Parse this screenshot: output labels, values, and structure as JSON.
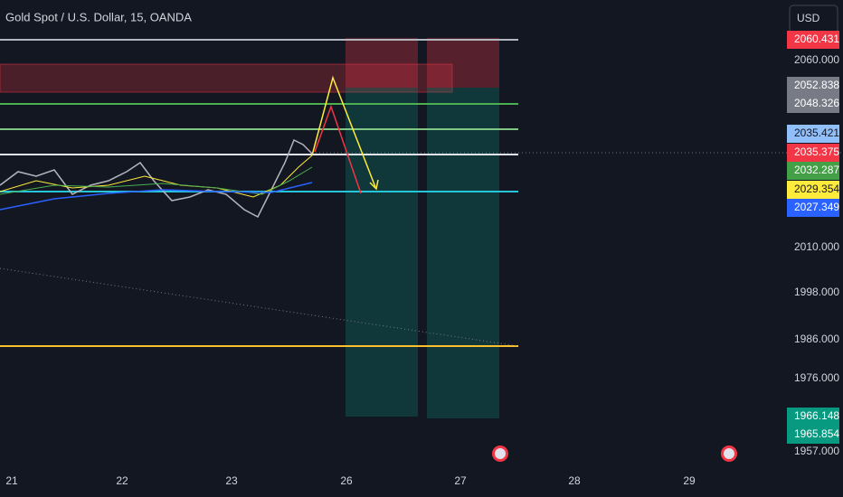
{
  "header": {
    "title": "Gold Spot / U.S. Dollar, 15, OANDA"
  },
  "currency": "USD",
  "price_axis": [
    "2060.000",
    "2010.000",
    "1998.000",
    "1986.000",
    "1976.000",
    "1957.000"
  ],
  "price_tags": [
    {
      "label": "2060.431",
      "color": "#f23645"
    },
    {
      "label": "2052.838",
      "color": "#787b86"
    },
    {
      "label": "2048.326",
      "color": "#787b86"
    },
    {
      "label": "2035.421",
      "color": "#90bff9"
    },
    {
      "label": "2035.375",
      "color": "#f23645"
    },
    {
      "label": "2032.287",
      "color": "#43a047"
    },
    {
      "label": "2029.354",
      "color": "#ffeb3b"
    },
    {
      "label": "2027.349",
      "color": "#2962ff"
    },
    {
      "label": "1966.148",
      "color": "#089981"
    },
    {
      "label": "1965.854",
      "color": "#089981"
    }
  ],
  "time_axis": [
    "21",
    "22",
    "23",
    "26",
    "27",
    "28",
    "29"
  ]
}
